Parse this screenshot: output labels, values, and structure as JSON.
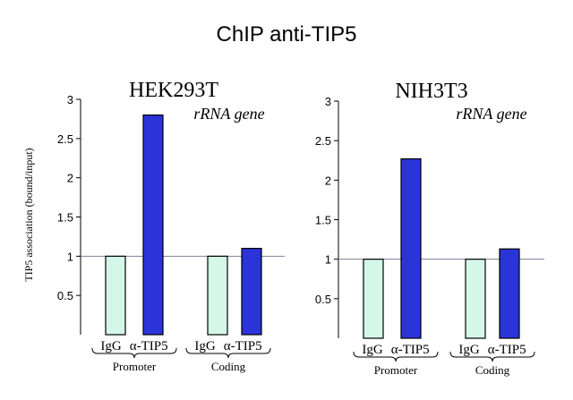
{
  "figure_title": "ChIP anti-TIP5",
  "ylabel": "TIP5 association (bound/input)",
  "colors": {
    "igg": "#d4f7ea",
    "tip5": "#2b34d8",
    "axis": "#000000",
    "reference_line": "#7f7f9a"
  },
  "chart_data": [
    {
      "type": "bar",
      "title": "HEK293T",
      "annotation": "rRNA gene",
      "ylim": [
        0,
        3
      ],
      "yticks": [
        0.5,
        1,
        1.5,
        2,
        2.5,
        3
      ],
      "ytick_labels": [
        "0.5",
        "1",
        "1.5",
        "2",
        "2.5",
        "3"
      ],
      "reference_line": 1,
      "groups": [
        {
          "label": "Promoter",
          "bars": [
            {
              "label": "IgG",
              "value": 1.0,
              "kind": "igg"
            },
            {
              "label": "α-TIP5",
              "value": 2.8,
              "kind": "tip5"
            }
          ]
        },
        {
          "label": "Coding",
          "bars": [
            {
              "label": "IgG",
              "value": 1.0,
              "kind": "igg"
            },
            {
              "label": "α-TIP5",
              "value": 1.1,
              "kind": "tip5"
            }
          ]
        }
      ]
    },
    {
      "type": "bar",
      "title": "NIH3T3",
      "annotation": "rRNA gene",
      "ylim": [
        0,
        3
      ],
      "yticks": [
        0.5,
        1,
        1.5,
        2,
        2.5,
        3
      ],
      "ytick_labels": [
        "0.5",
        "1",
        "1.5",
        "2",
        "2.5",
        "3"
      ],
      "reference_line": 1,
      "groups": [
        {
          "label": "Promoter",
          "bars": [
            {
              "label": "IgG",
              "value": 1.0,
              "kind": "igg"
            },
            {
              "label": "α-TIP5",
              "value": 2.27,
              "kind": "tip5"
            }
          ]
        },
        {
          "label": "Coding",
          "bars": [
            {
              "label": "IgG",
              "value": 1.0,
              "kind": "igg"
            },
            {
              "label": "α-TIP5",
              "value": 1.13,
              "kind": "tip5"
            }
          ]
        }
      ]
    }
  ]
}
